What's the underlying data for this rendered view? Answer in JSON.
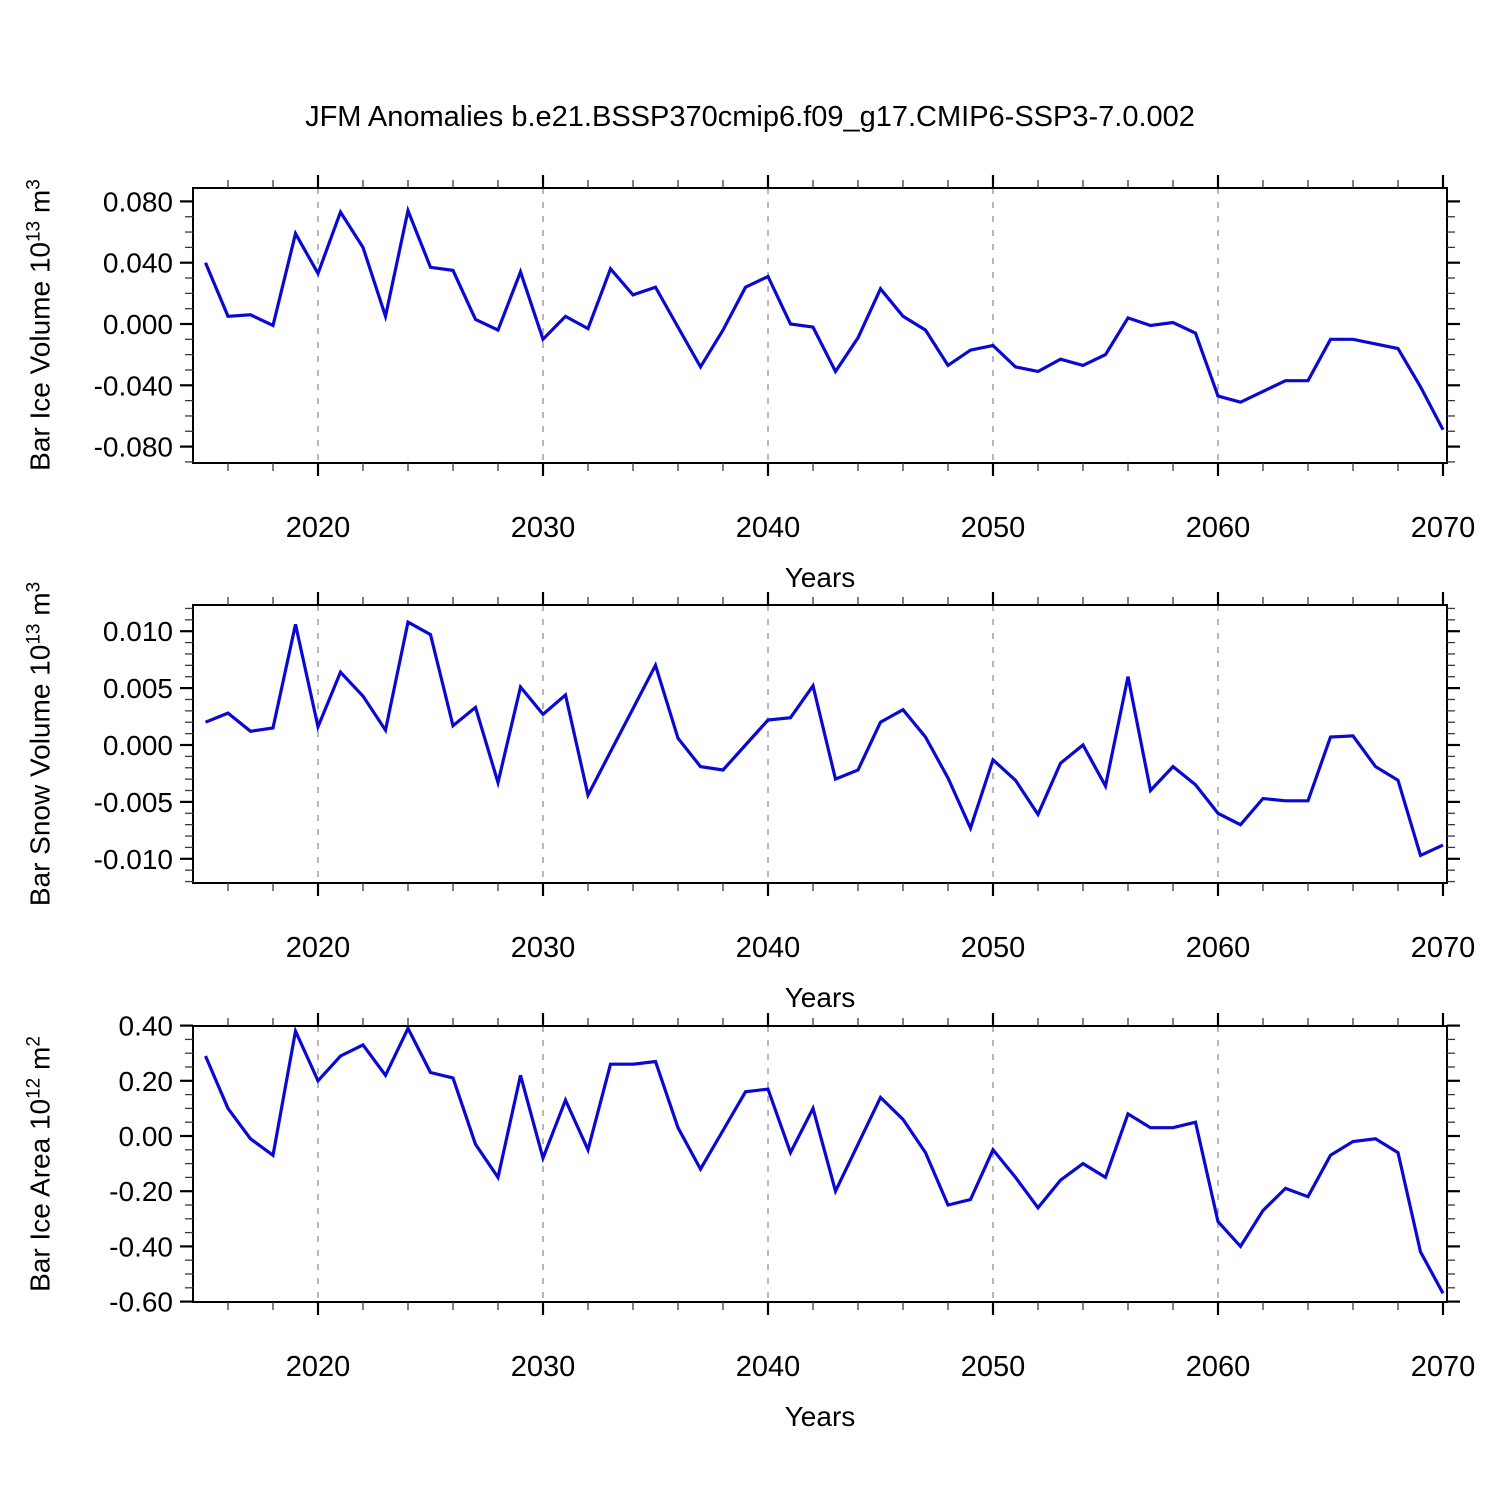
{
  "title": "JFM Anomalies b.e21.BSSP370cmip6.f09_g17.CMIP6-SSP3-7.0.002",
  "colors": {
    "line": "#0909d2",
    "grid": "#9a9a9a",
    "frame": "#000000",
    "background": "#ffffff"
  },
  "years": [
    2015,
    2016,
    2017,
    2018,
    2019,
    2020,
    2021,
    2022,
    2023,
    2024,
    2025,
    2026,
    2027,
    2028,
    2029,
    2030,
    2031,
    2032,
    2033,
    2034,
    2035,
    2036,
    2037,
    2038,
    2039,
    2040,
    2041,
    2042,
    2043,
    2044,
    2045,
    2046,
    2047,
    2048,
    2049,
    2050,
    2051,
    2052,
    2053,
    2054,
    2055,
    2056,
    2057,
    2058,
    2059,
    2060,
    2061,
    2062,
    2063,
    2064,
    2065,
    2066,
    2067,
    2068,
    2069,
    2070
  ],
  "chart_data": [
    {
      "type": "line",
      "title": "JFM Anomalies b.e21.BSSP370cmip6.f09_g17.CMIP6-SSP3-7.0.002",
      "ylabel": "Bar Ice Volume 10^13 m^3",
      "ylabel_parts": {
        "prefix": "Bar Ice Volume 10",
        "exp": "13",
        "unit": " m",
        "unit_exp": "3"
      },
      "xlabel": "Years",
      "ylim": [
        -0.091,
        0.089
      ],
      "xlim": [
        2014.4,
        2070.2
      ],
      "grid": "vertical-dashed",
      "legend": "none",
      "yticks": [
        {
          "label": "0.080",
          "value": 0.08
        },
        {
          "label": "0.040",
          "value": 0.04
        },
        {
          "label": "0.000",
          "value": 0.0
        },
        {
          "label": "-0.040",
          "value": -0.04
        },
        {
          "label": "-0.080",
          "value": -0.08
        }
      ],
      "xticks": [
        {
          "label": "2020",
          "value": 2020
        },
        {
          "label": "2030",
          "value": 2030
        },
        {
          "label": "2040",
          "value": 2040
        },
        {
          "label": "2050",
          "value": 2050
        },
        {
          "label": "2060",
          "value": 2060
        },
        {
          "label": "2070",
          "value": 2070
        }
      ],
      "grid_years": [
        2020,
        2030,
        2040,
        2050,
        2060
      ],
      "values": [
        0.04,
        0.005,
        0.006,
        -0.001,
        0.059,
        0.033,
        0.073,
        0.05,
        0.005,
        0.074,
        0.037,
        0.035,
        0.003,
        -0.004,
        0.034,
        -0.01,
        0.005,
        -0.003,
        0.036,
        0.019,
        0.024,
        -0.002,
        -0.028,
        -0.004,
        0.024,
        0.031,
        0.0,
        -0.002,
        -0.031,
        -0.009,
        0.023,
        0.005,
        -0.004,
        -0.027,
        -0.017,
        -0.014,
        -0.028,
        -0.031,
        -0.023,
        -0.027,
        -0.02,
        0.004,
        -0.001,
        0.001,
        -0.006,
        -0.047,
        -0.051,
        -0.044,
        -0.037,
        -0.037,
        -0.01,
        -0.01,
        -0.013,
        -0.016,
        -0.041,
        -0.069
      ]
    },
    {
      "type": "line",
      "title": "",
      "ylabel": "Bar Snow Volume 10^13 m^3",
      "ylabel_parts": {
        "prefix": "Bar Snow Volume 10",
        "exp": "13",
        "unit": " m",
        "unit_exp": "3"
      },
      "xlabel": "Years",
      "ylim": [
        -0.0122,
        0.0123
      ],
      "xlim": [
        2014.4,
        2070.2
      ],
      "grid": "vertical-dashed",
      "legend": "none",
      "yticks": [
        {
          "label": "0.010",
          "value": 0.01
        },
        {
          "label": "0.005",
          "value": 0.005
        },
        {
          "label": "0.000",
          "value": 0.0
        },
        {
          "label": "-0.005",
          "value": -0.005
        },
        {
          "label": "-0.010",
          "value": -0.01
        }
      ],
      "xticks": [
        {
          "label": "2020",
          "value": 2020
        },
        {
          "label": "2030",
          "value": 2030
        },
        {
          "label": "2040",
          "value": 2040
        },
        {
          "label": "2050",
          "value": 2050
        },
        {
          "label": "2060",
          "value": 2060
        },
        {
          "label": "2070",
          "value": 2070
        }
      ],
      "grid_years": [
        2020,
        2030,
        2040,
        2050,
        2060
      ],
      "values": [
        0.002,
        0.0028,
        0.0012,
        0.0015,
        0.0106,
        0.0016,
        0.0064,
        0.0043,
        0.0013,
        0.0108,
        0.0097,
        0.0017,
        0.0033,
        -0.0033,
        0.0051,
        0.0027,
        0.0044,
        -0.0044,
        -0.0006,
        0.0032,
        0.007,
        0.0006,
        -0.0019,
        -0.0022,
        0.0,
        0.0022,
        0.0024,
        0.0052,
        -0.003,
        -0.0022,
        0.002,
        0.0031,
        0.0007,
        -0.0029,
        -0.0073,
        -0.0013,
        -0.0031,
        -0.0061,
        -0.0016,
        0.0,
        -0.0036,
        0.006,
        -0.004,
        -0.0019,
        -0.0035,
        -0.006,
        -0.007,
        -0.0047,
        -0.0049,
        -0.0049,
        0.0007,
        0.0008,
        -0.0019,
        -0.0031,
        -0.0097,
        -0.0088
      ]
    },
    {
      "type": "line",
      "title": "",
      "ylabel": "Bar Ice Area 10^12 m^2",
      "ylabel_parts": {
        "prefix": "Bar Ice Area 10",
        "exp": "12",
        "unit": " m",
        "unit_exp": "2"
      },
      "xlabel": "Years",
      "ylim": [
        -0.601,
        0.398
      ],
      "xlim": [
        2014.4,
        2070.2
      ],
      "grid": "vertical-dashed",
      "legend": "none",
      "yticks": [
        {
          "label": "0.40",
          "value": 0.4
        },
        {
          "label": "0.20",
          "value": 0.2
        },
        {
          "label": "0.00",
          "value": 0.0
        },
        {
          "label": "-0.20",
          "value": -0.2
        },
        {
          "label": "-0.40",
          "value": -0.4
        },
        {
          "label": "-0.60",
          "value": -0.6
        }
      ],
      "xticks": [
        {
          "label": "2020",
          "value": 2020
        },
        {
          "label": "2030",
          "value": 2030
        },
        {
          "label": "2040",
          "value": 2040
        },
        {
          "label": "2050",
          "value": 2050
        },
        {
          "label": "2060",
          "value": 2060
        },
        {
          "label": "2070",
          "value": 2070
        }
      ],
      "grid_years": [
        2020,
        2030,
        2040,
        2050,
        2060
      ],
      "values": [
        0.29,
        0.1,
        -0.01,
        -0.07,
        0.38,
        0.2,
        0.29,
        0.33,
        0.22,
        0.39,
        0.23,
        0.21,
        -0.03,
        -0.15,
        0.22,
        -0.08,
        0.13,
        -0.05,
        0.26,
        0.26,
        0.27,
        0.03,
        -0.12,
        0.02,
        0.16,
        0.17,
        -0.06,
        0.1,
        -0.2,
        -0.03,
        0.14,
        0.06,
        -0.06,
        -0.25,
        -0.23,
        -0.05,
        -0.15,
        -0.26,
        -0.16,
        -0.1,
        -0.15,
        0.08,
        0.03,
        0.03,
        0.05,
        -0.31,
        -0.4,
        -0.27,
        -0.19,
        -0.22,
        -0.07,
        -0.02,
        -0.01,
        -0.06,
        -0.42,
        -0.57
      ]
    }
  ]
}
